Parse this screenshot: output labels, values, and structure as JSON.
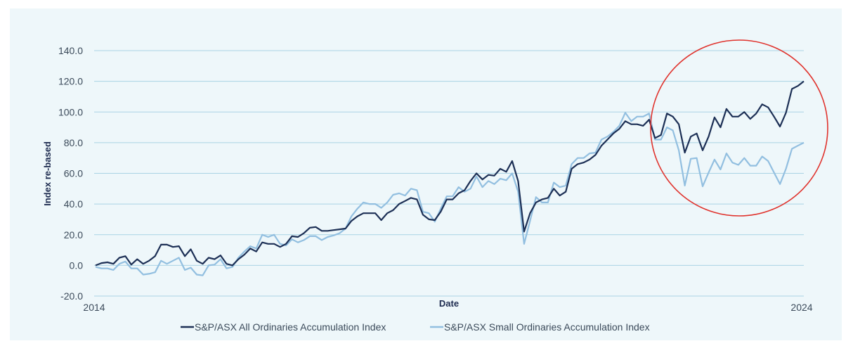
{
  "chart_data": {
    "type": "line",
    "title": "",
    "xlabel": "Date",
    "ylabel": "Index re-based",
    "ylim": [
      -20,
      140
    ],
    "y_ticks": [
      -20,
      0,
      20,
      40,
      60,
      80,
      100,
      120,
      140
    ],
    "y_tick_labels": [
      "-20.0",
      "0.0",
      "20.0",
      "40.0",
      "60.0",
      "80.0",
      "100.0",
      "120.0",
      "140.0"
    ],
    "x_start_label": "2014",
    "x_end_label": "2024",
    "grid": "horizontal",
    "legend_position": "bottom-center",
    "series": [
      {
        "name": "S&P/ASX All Ordinaries Accumulation Index",
        "color": "#1c2f55",
        "values": [
          0,
          1.5,
          2,
          1,
          5,
          6,
          0.5,
          4,
          1,
          3,
          6,
          13.5,
          13.5,
          12,
          12.5,
          6,
          10.5,
          3,
          1,
          5,
          4,
          6.5,
          1,
          0,
          4,
          7,
          11,
          9,
          15,
          14,
          14,
          12,
          14,
          19,
          18.5,
          21,
          24.5,
          25,
          22.5,
          22.5,
          23,
          23.5,
          24,
          29,
          32,
          34,
          34,
          34,
          29.5,
          34,
          36,
          40,
          42,
          44,
          43,
          33,
          30,
          29.5,
          35,
          43,
          43,
          47,
          49,
          55,
          60,
          56,
          59,
          58.5,
          63,
          61,
          68,
          55,
          22,
          34,
          41,
          43,
          44,
          50,
          45.5,
          48,
          63,
          66,
          67,
          69,
          72,
          78,
          82,
          86,
          89,
          94,
          92,
          92,
          91,
          95,
          83,
          85,
          99,
          97,
          92,
          73.5,
          84,
          86,
          75,
          84,
          96.5,
          90,
          102,
          97,
          97,
          100,
          95.5,
          99,
          105,
          103,
          97,
          90.5,
          99.5,
          115,
          117,
          120
        ]
      },
      {
        "name": "S&P/ASX Small Ordinaries Accumulation Index",
        "color": "#92bfe0",
        "values": [
          -1,
          -2,
          -2,
          -3,
          1,
          2.5,
          -2,
          -2,
          -6,
          -5.5,
          -4.5,
          3,
          1,
          3,
          5,
          -3,
          -1.5,
          -6,
          -6.5,
          0,
          0.5,
          4,
          -2,
          -1,
          5,
          9,
          12.5,
          11,
          20,
          18.5,
          20,
          14,
          13,
          17,
          15,
          16.5,
          19,
          19,
          16.5,
          18.5,
          19.5,
          21,
          24,
          32,
          37,
          41,
          40,
          40,
          37.5,
          41,
          46,
          47,
          45.5,
          50,
          49,
          35,
          34,
          28.5,
          37,
          45,
          45,
          51,
          48,
          50,
          58,
          51,
          55,
          53,
          56.5,
          55.5,
          60,
          48,
          14,
          29,
          44.5,
          41,
          41,
          54,
          51,
          52,
          66,
          70,
          70,
          73,
          73.5,
          82,
          84,
          87,
          91,
          99.5,
          94,
          97,
          97,
          99,
          82,
          82,
          90,
          88,
          75,
          52,
          69.5,
          70,
          51.5,
          60.5,
          69,
          62.5,
          73,
          67,
          65.5,
          70,
          65,
          65,
          71,
          68,
          60.5,
          53,
          63,
          76,
          78,
          80
        ]
      }
    ],
    "annotation": {
      "type": "circle",
      "color": "#e0322c",
      "description": "highlighted recent period"
    }
  }
}
